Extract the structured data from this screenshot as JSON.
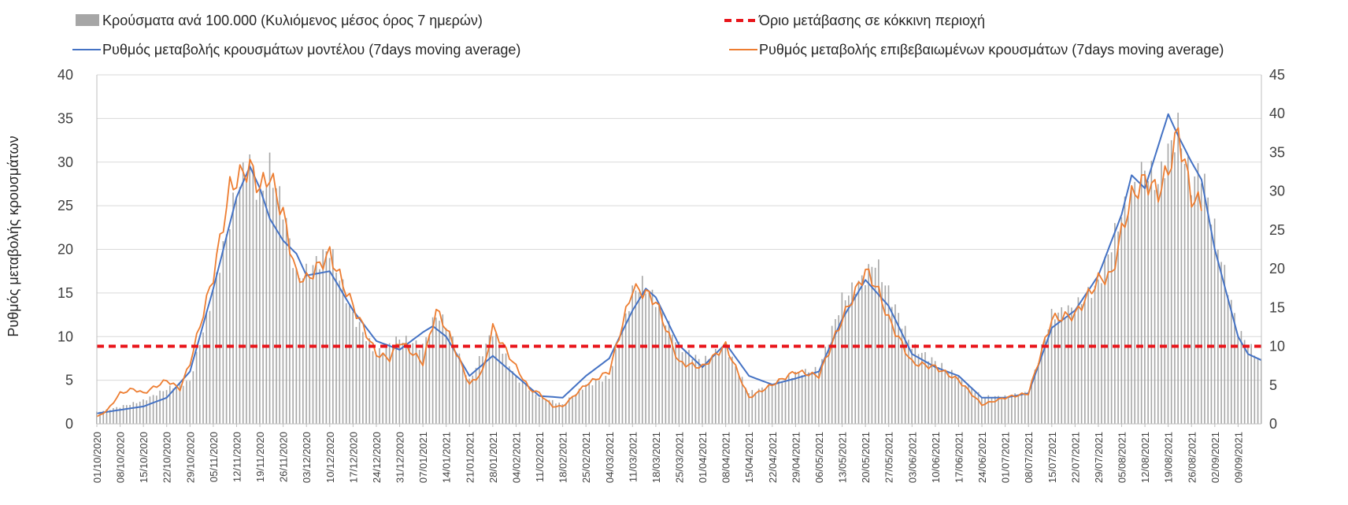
{
  "chart_data": {
    "type": "bar",
    "legend": {
      "placement": "top",
      "entries": [
        {
          "key": "bars",
          "label": "Κρούσματα ανά 100.000 (Κυλιόμενος μέσος όρος 7 ημερών)",
          "color": "#a6a6a6"
        },
        {
          "key": "threshold",
          "label": "Όριο μετάβασης σε κόκκινη περιοχή",
          "color": "#e8151b"
        },
        {
          "key": "model",
          "label": "Ρυθμός μεταβολής κρουσμάτων μοντέλου (7days moving average)",
          "color": "#4472c4"
        },
        {
          "key": "confirmed",
          "label": "Ρυθμός μεταβολής επιβεβαιωμένων κρουσμάτων (7days moving average)",
          "color": "#ed7d31"
        }
      ]
    },
    "ylabel": "Ρυθμός μεταβολής κρουσμάτων",
    "y_left": {
      "min": 0,
      "max": 40,
      "ticks": [
        "0",
        "5",
        "10",
        "15",
        "20",
        "25",
        "30",
        "35",
        "40"
      ]
    },
    "y_right": {
      "min": 0,
      "max": 45,
      "ticks": [
        "0",
        "5",
        "10",
        "15",
        "20",
        "25",
        "30",
        "35",
        "40",
        "45"
      ]
    },
    "x_start": "2020-10-01",
    "x_end": "2021-09-16",
    "x_tick_labels": [
      "01/10/2020",
      "08/10/2020",
      "15/10/2020",
      "22/10/2020",
      "29/10/2020",
      "05/11/2020",
      "12/11/2020",
      "19/11/2020",
      "26/11/2020",
      "03/12/2020",
      "10/12/2020",
      "17/12/2020",
      "24/12/2020",
      "31/12/2020",
      "07/01/2021",
      "14/01/2021",
      "21/01/2021",
      "28/01/2021",
      "04/02/2021",
      "11/02/2021",
      "18/02/2021",
      "25/02/2021",
      "04/03/2021",
      "11/03/2021",
      "18/03/2021",
      "25/03/2021",
      "01/04/2021",
      "08/04/2021",
      "15/04/2021",
      "22/04/2021",
      "29/04/2021",
      "06/05/2021",
      "13/05/2021",
      "20/05/2021",
      "27/05/2021",
      "03/06/2021",
      "10/06/2021",
      "17/06/2021",
      "24/06/2021",
      "01/07/2021",
      "08/07/2021",
      "15/07/2021",
      "22/07/2021",
      "29/07/2021",
      "05/08/2021",
      "12/08/2021",
      "19/08/2021",
      "26/08/2021",
      "02/09/2021",
      "09/09/2021"
    ],
    "threshold_value_right_axis": 10,
    "grid": true,
    "series": [
      {
        "name": "Κρούσματα ανά 100.000 (Κυλιόμενος μέσος όρος 7 ημερών)",
        "type": "bar",
        "axis": "right",
        "anchors": [
          [
            "2020-10-01",
            1.5
          ],
          [
            "2020-10-08",
            2.2
          ],
          [
            "2020-10-15",
            3.0
          ],
          [
            "2020-10-22",
            4.5
          ],
          [
            "2020-10-29",
            5.5
          ],
          [
            "2020-11-05",
            17
          ],
          [
            "2020-11-12",
            30
          ],
          [
            "2020-11-16",
            34
          ],
          [
            "2020-11-19",
            29
          ],
          [
            "2020-11-22",
            33
          ],
          [
            "2020-11-26",
            28
          ],
          [
            "2020-11-30",
            19
          ],
          [
            "2020-12-03",
            19.5
          ],
          [
            "2020-12-10",
            22.5
          ],
          [
            "2020-12-17",
            14
          ],
          [
            "2020-12-24",
            9
          ],
          [
            "2020-12-31",
            11
          ],
          [
            "2021-01-07",
            10
          ],
          [
            "2021-01-11",
            14
          ],
          [
            "2021-01-14",
            13
          ],
          [
            "2021-01-21",
            5.5
          ],
          [
            "2021-01-28",
            12
          ],
          [
            "2021-02-04",
            6
          ],
          [
            "2021-02-11",
            3.5
          ],
          [
            "2021-02-18",
            2.5
          ],
          [
            "2021-02-25",
            5
          ],
          [
            "2021-03-04",
            6
          ],
          [
            "2021-03-11",
            17
          ],
          [
            "2021-03-14",
            18
          ],
          [
            "2021-03-18",
            16
          ],
          [
            "2021-03-25",
            10
          ],
          [
            "2021-04-01",
            8
          ],
          [
            "2021-04-08",
            10
          ],
          [
            "2021-04-15",
            4
          ],
          [
            "2021-04-22",
            5
          ],
          [
            "2021-04-29",
            6.5
          ],
          [
            "2021-05-06",
            7
          ],
          [
            "2021-05-13",
            16
          ],
          [
            "2021-05-20",
            19
          ],
          [
            "2021-05-23",
            21
          ],
          [
            "2021-05-27",
            17
          ],
          [
            "2021-06-03",
            10
          ],
          [
            "2021-06-10",
            8
          ],
          [
            "2021-06-17",
            6
          ],
          [
            "2021-06-24",
            3.5
          ],
          [
            "2021-07-01",
            3.5
          ],
          [
            "2021-07-08",
            4
          ],
          [
            "2021-07-15",
            14
          ],
          [
            "2021-07-22",
            15
          ],
          [
            "2021-07-29",
            18
          ],
          [
            "2021-08-05",
            27
          ],
          [
            "2021-08-12",
            33
          ],
          [
            "2021-08-16",
            31
          ],
          [
            "2021-08-19",
            35
          ],
          [
            "2021-08-22",
            38
          ],
          [
            "2021-08-26",
            31
          ],
          [
            "2021-08-29",
            33
          ],
          [
            "2021-09-02",
            25
          ],
          [
            "2021-09-09",
            12
          ],
          [
            "2021-09-16",
            8
          ]
        ]
      },
      {
        "name": "Ρυθμός μεταβολής κρουσμάτων μοντέλου (7days moving average)",
        "type": "line",
        "axis": "left",
        "anchors": [
          [
            "2020-10-01",
            1.2
          ],
          [
            "2020-10-08",
            1.6
          ],
          [
            "2020-10-15",
            2.0
          ],
          [
            "2020-10-22",
            3.0
          ],
          [
            "2020-10-29",
            6.0
          ],
          [
            "2020-11-05",
            15.5
          ],
          [
            "2020-11-12",
            26
          ],
          [
            "2020-11-16",
            29.5
          ],
          [
            "2020-11-19",
            27
          ],
          [
            "2020-11-22",
            23.5
          ],
          [
            "2020-11-26",
            21
          ],
          [
            "2020-11-30",
            19.5
          ],
          [
            "2020-12-03",
            17
          ],
          [
            "2020-12-10",
            17.5
          ],
          [
            "2020-12-17",
            13
          ],
          [
            "2020-12-24",
            9.5
          ],
          [
            "2020-12-31",
            8.5
          ],
          [
            "2021-01-07",
            10.5
          ],
          [
            "2021-01-10",
            11.2
          ],
          [
            "2021-01-14",
            10
          ],
          [
            "2021-01-21",
            5.5
          ],
          [
            "2021-01-28",
            7.8
          ],
          [
            "2021-02-04",
            5.5
          ],
          [
            "2021-02-11",
            3.2
          ],
          [
            "2021-02-18",
            3.0
          ],
          [
            "2021-02-25",
            5.5
          ],
          [
            "2021-03-04",
            7.5
          ],
          [
            "2021-03-11",
            13
          ],
          [
            "2021-03-15",
            15.5
          ],
          [
            "2021-03-18",
            14.5
          ],
          [
            "2021-03-25",
            9
          ],
          [
            "2021-04-01",
            6.5
          ],
          [
            "2021-04-08",
            9.2
          ],
          [
            "2021-04-15",
            5.5
          ],
          [
            "2021-04-22",
            4.5
          ],
          [
            "2021-04-29",
            5.2
          ],
          [
            "2021-05-06",
            6
          ],
          [
            "2021-05-13",
            12
          ],
          [
            "2021-05-20",
            16.5
          ],
          [
            "2021-05-27",
            13.5
          ],
          [
            "2021-06-03",
            8
          ],
          [
            "2021-06-10",
            6.5
          ],
          [
            "2021-06-17",
            5.5
          ],
          [
            "2021-06-24",
            3
          ],
          [
            "2021-07-01",
            3
          ],
          [
            "2021-07-08",
            3.5
          ],
          [
            "2021-07-15",
            11
          ],
          [
            "2021-07-22",
            13
          ],
          [
            "2021-07-29",
            17
          ],
          [
            "2021-08-05",
            24
          ],
          [
            "2021-08-08",
            28.5
          ],
          [
            "2021-08-12",
            27
          ],
          [
            "2021-08-19",
            35.5
          ],
          [
            "2021-08-22",
            33
          ],
          [
            "2021-08-26",
            30
          ],
          [
            "2021-08-29",
            28
          ],
          [
            "2021-09-02",
            20
          ],
          [
            "2021-09-09",
            10
          ],
          [
            "2021-09-12",
            8
          ],
          [
            "2021-09-16",
            7.3
          ]
        ]
      },
      {
        "name": "Ρυθμός μεταβολής επιβεβαιωμένων κρουσμάτων (7days moving average)",
        "type": "line",
        "axis": "left",
        "anchors": [
          [
            "2020-10-01",
            0.8
          ],
          [
            "2020-10-04",
            1.5
          ],
          [
            "2020-10-08",
            3.5
          ],
          [
            "2020-10-12",
            4.0
          ],
          [
            "2020-10-15",
            3.5
          ],
          [
            "2020-10-22",
            5.0
          ],
          [
            "2020-10-26",
            4.0
          ],
          [
            "2020-10-29",
            7.0
          ],
          [
            "2020-11-05",
            17
          ],
          [
            "2020-11-10",
            27
          ],
          [
            "2020-11-12",
            28
          ],
          [
            "2020-11-16",
            29.5
          ],
          [
            "2020-11-19",
            27
          ],
          [
            "2020-11-22",
            28.5
          ],
          [
            "2020-11-26",
            24
          ],
          [
            "2020-11-30",
            17
          ],
          [
            "2020-12-03",
            16.5
          ],
          [
            "2020-12-10",
            19.5
          ],
          [
            "2020-12-14",
            16
          ],
          [
            "2020-12-17",
            13.5
          ],
          [
            "2020-12-24",
            8
          ],
          [
            "2020-12-28",
            7.5
          ],
          [
            "2020-12-31",
            9.5
          ],
          [
            "2021-01-07",
            7
          ],
          [
            "2021-01-11",
            13
          ],
          [
            "2021-01-14",
            11
          ],
          [
            "2021-01-21",
            4.5
          ],
          [
            "2021-01-25",
            6
          ],
          [
            "2021-01-28",
            11
          ],
          [
            "2021-02-04",
            6.5
          ],
          [
            "2021-02-08",
            4
          ],
          [
            "2021-02-11",
            3.5
          ],
          [
            "2021-02-15",
            2
          ],
          [
            "2021-02-18",
            2
          ],
          [
            "2021-02-25",
            4.5
          ],
          [
            "2021-03-04",
            6
          ],
          [
            "2021-03-11",
            15.5
          ],
          [
            "2021-03-15",
            15
          ],
          [
            "2021-03-18",
            14
          ],
          [
            "2021-03-25",
            7
          ],
          [
            "2021-04-01",
            6.5
          ],
          [
            "2021-04-08",
            9
          ],
          [
            "2021-04-15",
            3
          ],
          [
            "2021-04-22",
            4.5
          ],
          [
            "2021-04-29",
            6
          ],
          [
            "2021-05-06",
            5.5
          ],
          [
            "2021-05-13",
            12
          ],
          [
            "2021-05-20",
            17.5
          ],
          [
            "2021-05-23",
            16
          ],
          [
            "2021-05-27",
            12
          ],
          [
            "2021-06-03",
            7
          ],
          [
            "2021-06-10",
            6.5
          ],
          [
            "2021-06-17",
            5
          ],
          [
            "2021-06-24",
            2.2
          ],
          [
            "2021-07-01",
            3
          ],
          [
            "2021-07-08",
            3.5
          ],
          [
            "2021-07-15",
            12
          ],
          [
            "2021-07-22",
            12.5
          ],
          [
            "2021-07-29",
            16.5
          ],
          [
            "2021-08-02",
            17
          ],
          [
            "2021-08-05",
            22
          ],
          [
            "2021-08-08",
            26
          ],
          [
            "2021-08-12",
            28
          ],
          [
            "2021-08-16",
            26.5
          ],
          [
            "2021-08-19",
            29
          ],
          [
            "2021-08-22",
            33.5
          ],
          [
            "2021-08-26",
            26
          ],
          [
            "2021-08-29",
            25
          ]
        ]
      }
    ]
  }
}
